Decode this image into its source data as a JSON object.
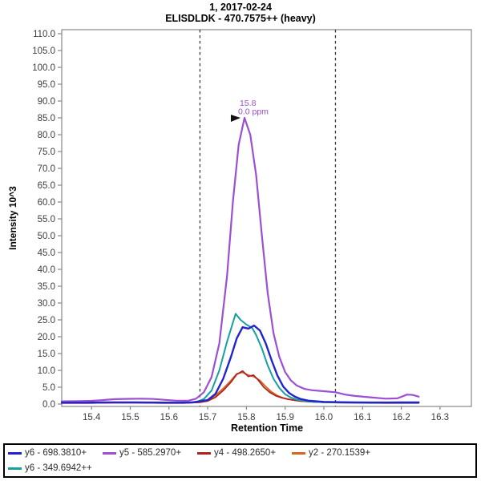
{
  "title": {
    "line1": "1, 2017-02-24",
    "line2": "ELISDLDK - 470.7575++ (heavy)"
  },
  "chart_data": {
    "type": "line",
    "title": "1, 2017-02-24",
    "subtitle": "ELISDLDK - 470.7575++ (heavy)",
    "xlabel": "Retention Time",
    "ylabel": "Intensity 10^3",
    "xlim": [
      15.323,
      16.381
    ],
    "ylim": [
      0,
      111.2
    ],
    "x_ticks": [
      15.4,
      15.5,
      15.6,
      15.7,
      15.8,
      15.9,
      16.0,
      16.1,
      16.2,
      16.3
    ],
    "y_tick_min": 0,
    "y_tick_max": 110,
    "y_tick_step": 5,
    "grid": "off",
    "legend_position": "bottom",
    "peak_boundaries": [
      15.68,
      16.03
    ],
    "annotation": {
      "rt_label": "15.8",
      "ppm_label": "0.0 ppm",
      "rt": 15.795,
      "intensity": 85,
      "color": "#9c4fd4",
      "arrow_color": "#111111"
    },
    "axis_color": "#878787",
    "tick_text_color": "#3d3d3d",
    "boundary_color": "#3a3a3a",
    "draw_order": [
      1,
      3,
      2,
      4,
      0
    ],
    "stroke_widths": [
      2.4,
      2.2,
      1.8,
      1.8,
      2.0
    ],
    "series": [
      {
        "name": "y6 - 698.3810+",
        "color": "#2323cf",
        "points": [
          [
            15.323,
            0.4
          ],
          [
            15.38,
            0.4
          ],
          [
            15.44,
            0.5
          ],
          [
            15.5,
            0.5
          ],
          [
            15.56,
            0.45
          ],
          [
            15.62,
            0.4
          ],
          [
            15.66,
            0.5
          ],
          [
            15.68,
            0.8
          ],
          [
            15.7,
            1.2
          ],
          [
            15.72,
            3.0
          ],
          [
            15.74,
            7.5
          ],
          [
            15.76,
            14.0
          ],
          [
            15.775,
            19.5
          ],
          [
            15.79,
            22.8
          ],
          [
            15.805,
            22.4
          ],
          [
            15.82,
            23.3
          ],
          [
            15.835,
            21.8
          ],
          [
            15.85,
            18.0
          ],
          [
            15.865,
            13.0
          ],
          [
            15.88,
            8.5
          ],
          [
            15.895,
            5.2
          ],
          [
            15.91,
            3.3
          ],
          [
            15.925,
            2.2
          ],
          [
            15.94,
            1.5
          ],
          [
            15.96,
            1.0
          ],
          [
            15.98,
            0.8
          ],
          [
            16.0,
            0.65
          ],
          [
            16.04,
            0.55
          ],
          [
            16.08,
            0.5
          ],
          [
            16.12,
            0.45
          ],
          [
            16.16,
            0.45
          ],
          [
            16.2,
            0.5
          ],
          [
            16.245,
            0.5
          ]
        ]
      },
      {
        "name": "y5 - 585.2970+",
        "color": "#9c4fd4",
        "points": [
          [
            15.323,
            0.8
          ],
          [
            15.37,
            0.85
          ],
          [
            15.4,
            0.95
          ],
          [
            15.43,
            1.2
          ],
          [
            15.46,
            1.45
          ],
          [
            15.5,
            1.55
          ],
          [
            15.53,
            1.6
          ],
          [
            15.56,
            1.5
          ],
          [
            15.59,
            1.25
          ],
          [
            15.62,
            1.0
          ],
          [
            15.65,
            1.0
          ],
          [
            15.67,
            1.6
          ],
          [
            15.69,
            3.5
          ],
          [
            15.71,
            8.0
          ],
          [
            15.73,
            18.0
          ],
          [
            15.75,
            38.0
          ],
          [
            15.765,
            60.0
          ],
          [
            15.78,
            77.0
          ],
          [
            15.795,
            85.0
          ],
          [
            15.81,
            80.0
          ],
          [
            15.825,
            68.0
          ],
          [
            15.84,
            50.0
          ],
          [
            15.855,
            33.0
          ],
          [
            15.87,
            21.0
          ],
          [
            15.885,
            14.0
          ],
          [
            15.9,
            9.5
          ],
          [
            15.915,
            7.0
          ],
          [
            15.93,
            5.5
          ],
          [
            15.95,
            4.5
          ],
          [
            15.97,
            4.1
          ],
          [
            16.0,
            3.8
          ],
          [
            16.03,
            3.5
          ],
          [
            16.055,
            2.8
          ],
          [
            16.08,
            2.4
          ],
          [
            16.12,
            2.0
          ],
          [
            16.16,
            1.6
          ],
          [
            16.19,
            1.7
          ],
          [
            16.215,
            2.8
          ],
          [
            16.23,
            2.7
          ],
          [
            16.245,
            2.2
          ]
        ]
      },
      {
        "name": "y4 - 498.2650+",
        "color": "#b22222",
        "points": [
          [
            15.323,
            0.3
          ],
          [
            15.4,
            0.3
          ],
          [
            15.46,
            0.4
          ],
          [
            15.52,
            0.4
          ],
          [
            15.58,
            0.3
          ],
          [
            15.64,
            0.3
          ],
          [
            15.68,
            0.5
          ],
          [
            15.7,
            0.9
          ],
          [
            15.72,
            2.0
          ],
          [
            15.74,
            4.0
          ],
          [
            15.76,
            6.5
          ],
          [
            15.775,
            8.8
          ],
          [
            15.79,
            9.8
          ],
          [
            15.805,
            8.2
          ],
          [
            15.818,
            8.6
          ],
          [
            15.83,
            7.2
          ],
          [
            15.845,
            5.0
          ],
          [
            15.86,
            3.5
          ],
          [
            15.875,
            2.5
          ],
          [
            15.89,
            1.9
          ],
          [
            15.905,
            1.5
          ],
          [
            15.92,
            1.2
          ],
          [
            15.94,
            0.9
          ],
          [
            15.96,
            0.75
          ],
          [
            15.98,
            0.6
          ],
          [
            16.0,
            0.55
          ],
          [
            16.04,
            0.45
          ],
          [
            16.08,
            0.4
          ],
          [
            16.12,
            0.35
          ],
          [
            16.16,
            0.3
          ],
          [
            16.2,
            0.3
          ],
          [
            16.245,
            0.3
          ]
        ]
      },
      {
        "name": "y2 - 270.1539+",
        "color": "#d2691e",
        "points": [
          [
            15.323,
            0.3
          ],
          [
            15.4,
            0.3
          ],
          [
            15.46,
            0.4
          ],
          [
            15.52,
            0.4
          ],
          [
            15.58,
            0.3
          ],
          [
            15.64,
            0.3
          ],
          [
            15.68,
            0.6
          ],
          [
            15.7,
            1.2
          ],
          [
            15.72,
            2.6
          ],
          [
            15.74,
            4.6
          ],
          [
            15.76,
            7.0
          ],
          [
            15.775,
            9.0
          ],
          [
            15.79,
            9.4
          ],
          [
            15.805,
            8.6
          ],
          [
            15.82,
            8.1
          ],
          [
            15.835,
            7.0
          ],
          [
            15.85,
            5.2
          ],
          [
            15.865,
            3.6
          ],
          [
            15.88,
            2.5
          ],
          [
            15.895,
            1.8
          ],
          [
            15.91,
            1.4
          ],
          [
            15.925,
            1.1
          ],
          [
            15.94,
            0.85
          ],
          [
            15.96,
            0.7
          ],
          [
            15.98,
            0.6
          ],
          [
            16.0,
            0.5
          ],
          [
            16.04,
            0.4
          ],
          [
            16.08,
            0.35
          ],
          [
            16.12,
            0.3
          ],
          [
            16.16,
            0.3
          ],
          [
            16.2,
            0.3
          ],
          [
            16.245,
            0.3
          ]
        ]
      },
      {
        "name": "y6 - 349.6942++",
        "color": "#16a0a0",
        "points": [
          [
            15.323,
            0.4
          ],
          [
            15.4,
            0.4
          ],
          [
            15.46,
            0.5
          ],
          [
            15.52,
            0.5
          ],
          [
            15.58,
            0.4
          ],
          [
            15.64,
            0.4
          ],
          [
            15.67,
            0.6
          ],
          [
            15.69,
            1.5
          ],
          [
            15.71,
            4.0
          ],
          [
            15.73,
            10.0
          ],
          [
            15.75,
            18.5
          ],
          [
            15.772,
            26.8
          ],
          [
            15.785,
            25.0
          ],
          [
            15.8,
            23.6
          ],
          [
            15.815,
            22.6
          ],
          [
            15.825,
            20.5
          ],
          [
            15.84,
            16.5
          ],
          [
            15.855,
            11.5
          ],
          [
            15.87,
            7.5
          ],
          [
            15.885,
            4.8
          ],
          [
            15.9,
            2.9
          ],
          [
            15.915,
            1.9
          ],
          [
            15.93,
            1.3
          ],
          [
            15.95,
            0.9
          ],
          [
            15.97,
            0.7
          ],
          [
            16.0,
            0.55
          ],
          [
            16.04,
            0.45
          ],
          [
            16.08,
            0.4
          ],
          [
            16.12,
            0.38
          ],
          [
            16.16,
            0.38
          ],
          [
            16.2,
            0.38
          ],
          [
            16.245,
            0.38
          ]
        ]
      }
    ]
  }
}
